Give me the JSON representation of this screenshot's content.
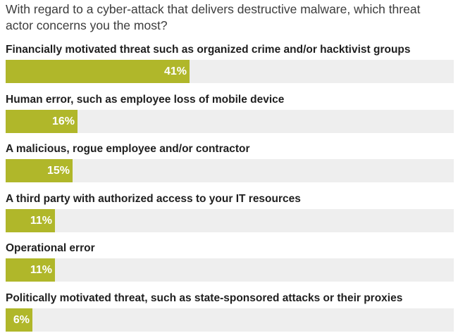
{
  "title": "With regard to a cyber-attack that delivers destructive malware, which threat actor concerns you the most?",
  "colors": {
    "bar": "#b0b72a",
    "track": "#eeeeee"
  },
  "chart_data": {
    "type": "bar",
    "orientation": "horizontal",
    "title": "With regard to a cyber-attack that delivers destructive malware, which threat actor concerns you the most?",
    "categories": [
      "Financially motivated threat such as organized crime and/or hacktivist groups",
      "Human error, such as employee loss of mobile device",
      "A malicious, rogue employee and/or contractor",
      "A third party with authorized access to your IT resources",
      "Operational error",
      "Politically motivated threat, such as state-sponsored attacks or their proxies"
    ],
    "values": [
      41,
      16,
      15,
      11,
      11,
      6
    ],
    "value_labels": [
      "41%",
      "16%",
      "15%",
      "11%",
      "11%",
      "6%"
    ],
    "xlim": [
      0,
      100
    ],
    "unit": "%",
    "grid": false
  }
}
